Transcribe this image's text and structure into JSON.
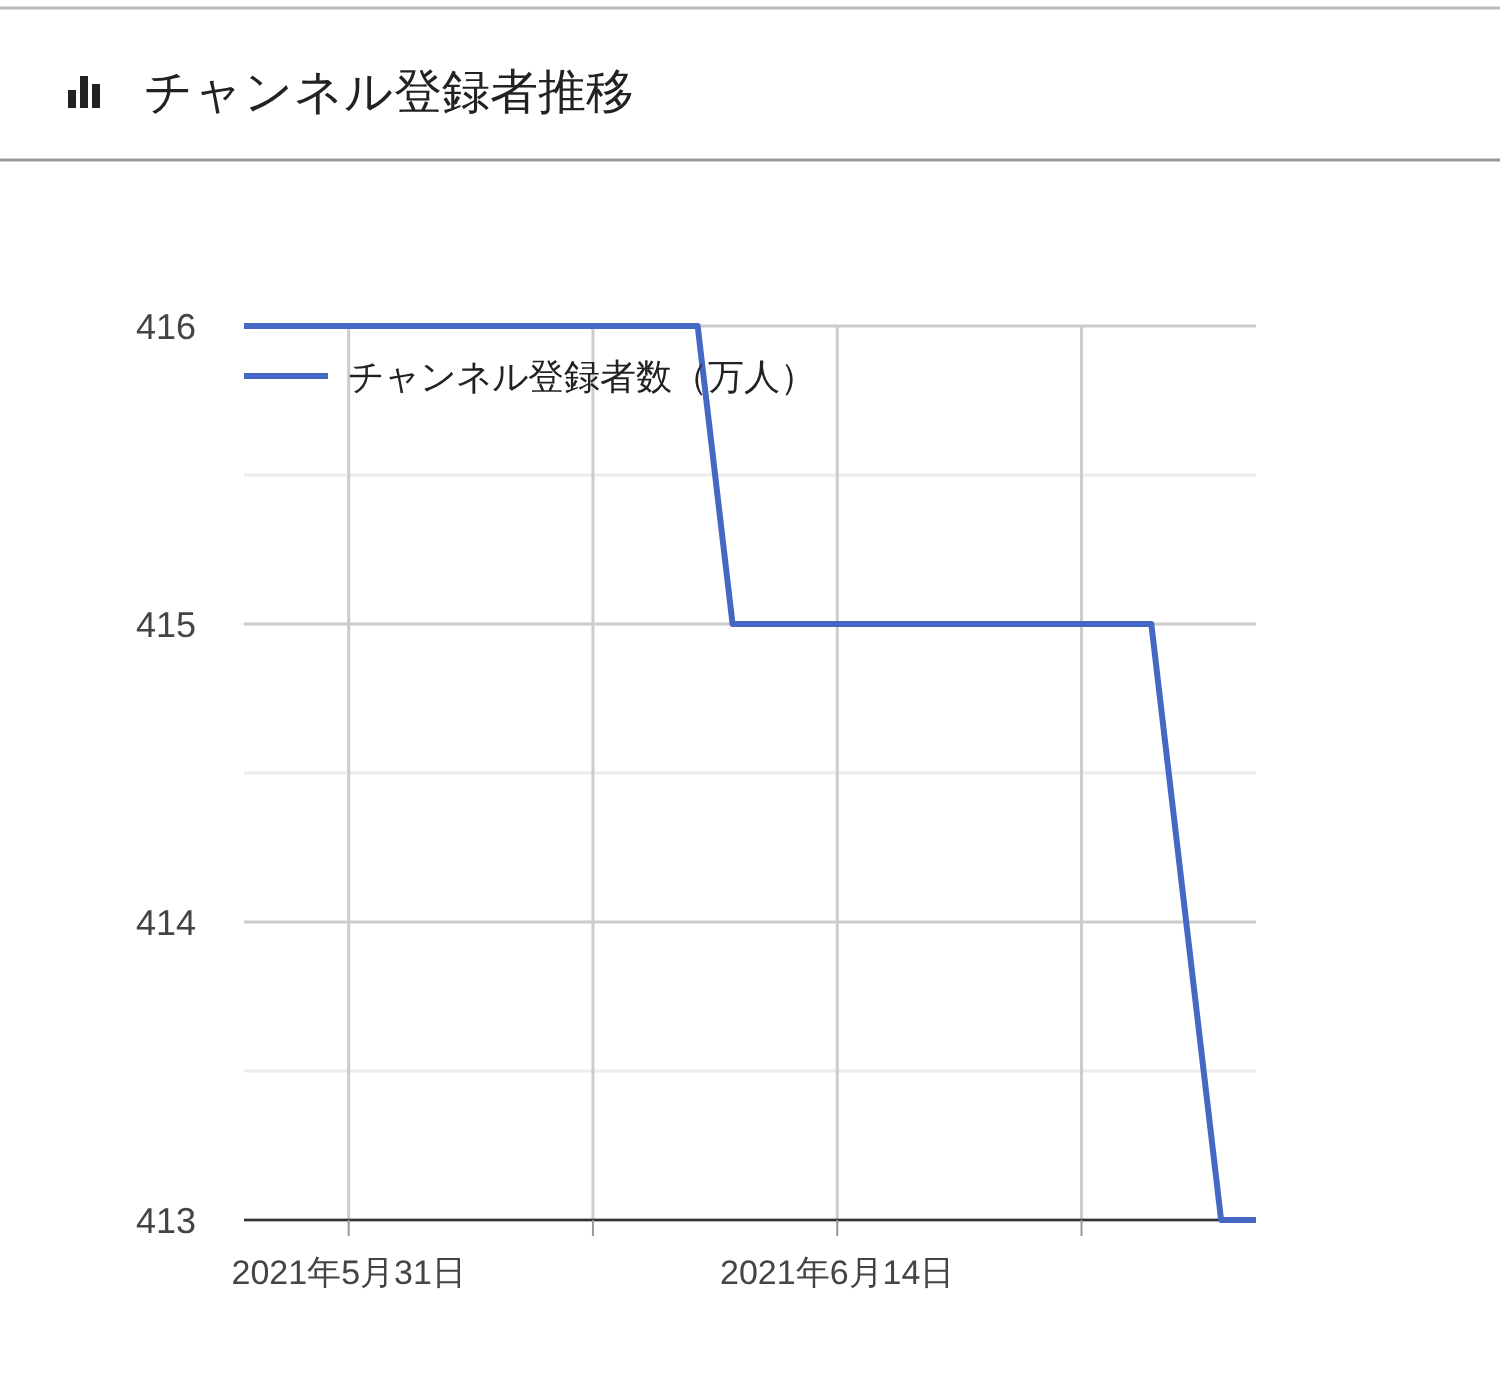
{
  "chart_data": {
    "type": "line",
    "title": "チャンネル登録者推移",
    "x": [
      "2021-05-28",
      "2021-06-10",
      "2021-06-11",
      "2021-06-23",
      "2021-06-25",
      "2021-06-26"
    ],
    "series": [
      {
        "name": "チャンネル登録者数（万人）",
        "color": "#4468c4",
        "values": [
          416,
          416,
          415,
          415,
          413,
          413
        ]
      }
    ],
    "xlim": [
      "2021-05-28",
      "2021-06-26"
    ],
    "xticks": [
      {
        "value": "2021-05-31",
        "label": "2021年5月31日"
      },
      {
        "value": "2021-06-07",
        "label": null
      },
      {
        "value": "2021-06-14",
        "label": "2021年6月14日"
      },
      {
        "value": "2021-06-21",
        "label": null
      }
    ],
    "ylim": [
      413,
      416
    ],
    "yticks": [
      413,
      {
        "value": 413.5,
        "label": null
      },
      414,
      {
        "value": 414.5,
        "label": null
      },
      415,
      {
        "value": 415.5,
        "label": null
      },
      416
    ],
    "grid": true,
    "legend": "top left",
    "marker": "none",
    "line_style": "solid"
  }
}
